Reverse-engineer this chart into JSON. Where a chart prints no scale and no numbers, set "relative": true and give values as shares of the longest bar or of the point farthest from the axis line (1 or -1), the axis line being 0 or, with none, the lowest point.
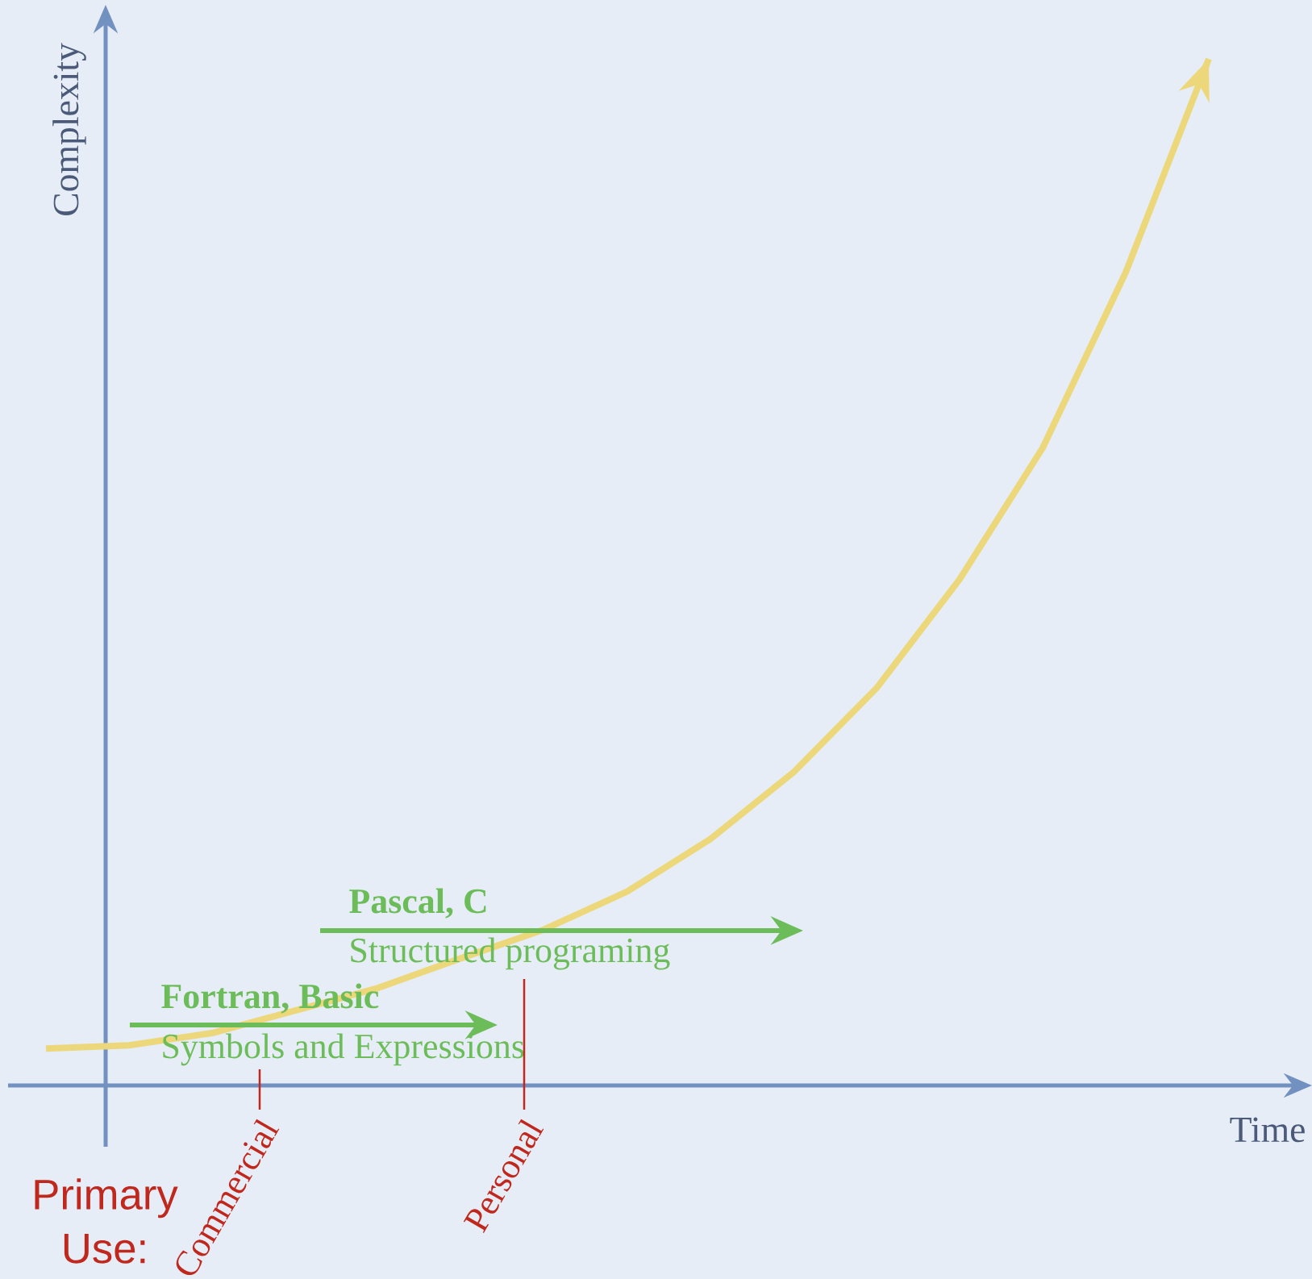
{
  "chart_data": {
    "type": "line",
    "relative": true,
    "categories": [
      null,
      null,
      null,
      null,
      null,
      null,
      null,
      null,
      null,
      null,
      null,
      null,
      null,
      null,
      null
    ],
    "series": [
      {
        "color": "#ecd87a",
        "values": [
          0.036,
          0.039,
          0.051,
          0.073,
          0.095,
          0.124,
          0.152,
          0.189,
          0.24,
          0.305,
          0.387,
          0.493,
          0.621,
          0.792,
          1.0
        ]
      }
    ],
    "xlabel": "Time",
    "ylabel": "Complexity",
    "annotations": [
      "Fortran, Basic",
      "Symbols and Expressions",
      "Pascal, C",
      "Structured programing",
      "Commercial",
      "Personal",
      "Primary Use:"
    ]
  }
}
